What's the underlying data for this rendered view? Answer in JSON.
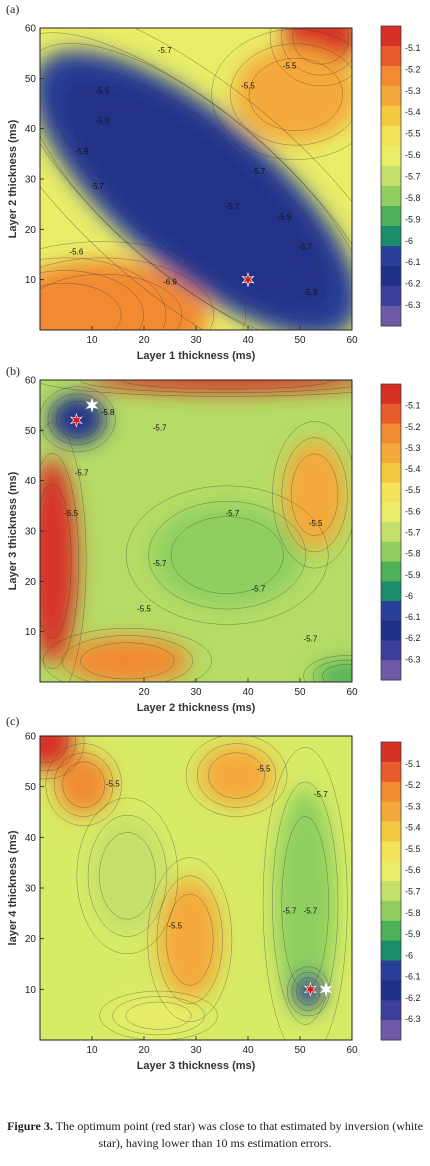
{
  "caption": {
    "label": "Figure 3.",
    "text": "The optimum point (red star) was close to that estimated by inversion (white star), having lower than 10 ms estimation errors."
  },
  "colorbar": {
    "ticks": [
      "-5.1",
      "-5.2",
      "-5.3",
      "-5.4",
      "-5.5",
      "-5.6",
      "-5.7",
      "-5.8",
      "-5.9",
      "-6",
      "-6.1",
      "-6.2",
      "-6.3"
    ],
    "colors": [
      "#d73027",
      "#e95b2a",
      "#f18a30",
      "#f5a93a",
      "#f3c93f",
      "#f4e35a",
      "#e9ed68",
      "#c3e06a",
      "#8ecf60",
      "#4fb05a",
      "#1a8c6a",
      "#2a3f9a",
      "#203088",
      "#3c3f9c",
      "#6f5aa8"
    ]
  },
  "chart_data": [
    {
      "type": "heatmap",
      "panel": "(a)",
      "xlabel": "Layer 1 thickness (ms)",
      "ylabel": "Layer 2 thickness (ms)",
      "xlim": [
        0,
        60
      ],
      "ylim": [
        0,
        60
      ],
      "xticks": [
        10,
        20,
        30,
        40,
        50,
        60
      ],
      "yticks": [
        10,
        20,
        30,
        40,
        50,
        60
      ],
      "contour_labels": [
        "-5.7",
        "-5.5",
        "-5.5",
        "-5.9",
        "-5.5",
        "-5.9",
        "-5.7",
        "-5.7",
        "-5.9",
        "-5.7",
        "-5.6",
        "-6.9",
        "-5.7",
        "-5.9"
      ],
      "contour_label_pos": [
        [
          24,
          55
        ],
        [
          12,
          47
        ],
        [
          40,
          48
        ],
        [
          12,
          41
        ],
        [
          48,
          52
        ],
        [
          8,
          35
        ],
        [
          42,
          31
        ],
        [
          37,
          24
        ],
        [
          47,
          22
        ],
        [
          11,
          28
        ],
        [
          7,
          15
        ],
        [
          25,
          9
        ],
        [
          51,
          16
        ],
        [
          52,
          7
        ]
      ],
      "red_star": [
        40,
        10
      ],
      "white_star": [
        40,
        10
      ]
    },
    {
      "type": "heatmap",
      "panel": "(b)",
      "xlabel": "Layer 2 thickness (ms)",
      "ylabel": "Layer 3 thickness (ms)",
      "xlim": [
        0,
        60
      ],
      "ylim": [
        0,
        60
      ],
      "xticks": [
        20,
        30,
        40,
        50,
        60
      ],
      "yticks": [
        10,
        20,
        30,
        40,
        50,
        60
      ],
      "contour_labels": [
        "-5.8",
        "-5.7",
        "-5.7",
        "-5.5",
        "-5.7",
        "-5.7",
        "-5.5",
        "-5.5",
        "-5.7",
        "-5.7"
      ],
      "contour_label_pos": [
        [
          13,
          53
        ],
        [
          23,
          50
        ],
        [
          8,
          41
        ],
        [
          6,
          33
        ],
        [
          37,
          33
        ],
        [
          23,
          23
        ],
        [
          20,
          14
        ],
        [
          53,
          31
        ],
        [
          42,
          18
        ],
        [
          52,
          8
        ]
      ],
      "red_star": [
        7,
        52
      ],
      "white_star": [
        10,
        55
      ]
    },
    {
      "type": "heatmap",
      "panel": "(c)",
      "xlabel": "Layer 3 thickness (ms)",
      "ylabel": "layer 4 thickness (ms)",
      "xlim": [
        0,
        60
      ],
      "ylim": [
        0,
        60
      ],
      "xticks": [
        10,
        20,
        30,
        40,
        50,
        60
      ],
      "yticks": [
        10,
        20,
        30,
        40,
        50,
        60
      ],
      "contour_labels": [
        "-5.5",
        "-5.5",
        "-5.7",
        "-5.5",
        "-5.7",
        "-5.7"
      ],
      "contour_label_pos": [
        [
          14,
          50
        ],
        [
          43,
          53
        ],
        [
          54,
          48
        ],
        [
          26,
          22
        ],
        [
          48,
          25
        ],
        [
          52,
          25
        ]
      ],
      "red_star": [
        52,
        10
      ],
      "white_star": [
        55,
        10
      ]
    }
  ]
}
